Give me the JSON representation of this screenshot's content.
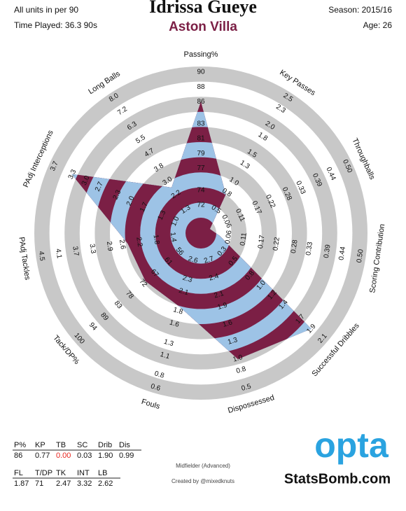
{
  "chart_data": {
    "type": "radar",
    "title": "Idrissa Gueye",
    "subtitle": "Aston Villa",
    "units_note": "All units in per 90",
    "time_played": "Time Played: 36.3 90s",
    "season": "Season: 2015/16",
    "age": "Age: 26",
    "position": "Midfielder (Advanced)",
    "credit": "Created by @mixedknuts",
    "logo": "opta",
    "site": "StatsBomb.com",
    "axes": [
      {
        "name": "Passing%",
        "abbreviation": "P%",
        "lim": [
          72,
          90
        ],
        "ticks": [
          72,
          74,
          77,
          79,
          81,
          83,
          86,
          88,
          90
        ]
      },
      {
        "name": "Key Passes",
        "abbreviation": "KP",
        "lim": [
          0.5,
          2.5
        ],
        "ticks": [
          0.5,
          0.8,
          {
            "value": 1,
            "label": "1.0"
          },
          1.3,
          1.5,
          1.8,
          {
            "value": 2,
            "label": "2.0"
          },
          2.3,
          2.5
        ]
      },
      {
        "name": "Throughballs",
        "abbreviation": "TB",
        "lim": [
          0.06,
          0.5
        ],
        "ticks": [
          0.06,
          0.11,
          0.17,
          0.22,
          0.28,
          0.33,
          0.39,
          0.44,
          {
            "value": 0.5,
            "label": "0.50"
          }
        ]
      },
      {
        "name": "Scoring Contribution",
        "abbreviation": "SC",
        "lim": [
          0.06,
          0.5
        ],
        "ticks": [
          0.06,
          0.11,
          0.17,
          0.22,
          0.28,
          0.33,
          0.39,
          0.44,
          {
            "value": 0.5,
            "label": "0.50"
          }
        ]
      },
      {
        "name": "Successful Dribbles",
        "abbreviation": "Drib",
        "lim": [
          0.3,
          2.1
        ],
        "ticks": [
          0.3,
          0.5,
          0.8,
          {
            "value": 1,
            "label": "1.0"
          },
          1.2,
          1.4,
          1.7,
          1.9,
          2.1
        ]
      },
      {
        "name": "Dispossessed",
        "abbreviation": "Dis",
        "lim": [
          2.7,
          0.5
        ],
        "ticks": [
          2.7,
          2.4,
          2.1,
          1.9,
          1.6,
          1.3,
          {
            "value": 1,
            "label": "1.0"
          },
          0.8,
          0.5
        ]
      },
      {
        "name": "Fouls",
        "abbreviation": "FL",
        "lim": [
          2.6,
          0.6
        ],
        "ticks": [
          2.6,
          2.3,
          2.1,
          1.8,
          1.6,
          1.3,
          1.1,
          0.8,
          0.6
        ]
      },
      {
        "name": "Tack/DP%",
        "abbreviation": "T/DP",
        "lim": [
          56,
          100
        ],
        "ticks": [
          56,
          61,
          67,
          72,
          78,
          83,
          89,
          94,
          100
        ]
      },
      {
        "name": "PAdj Tackles",
        "abbreviation": "TK",
        "lim": [
          1.4,
          4.5
        ],
        "ticks": [
          1.4,
          1.8,
          2.2,
          2.6,
          2.9,
          3.3,
          3.7,
          4.1,
          4.5
        ]
      },
      {
        "name": "PAdj Interceptions",
        "abbreviation": "INT",
        "lim": [
          1,
          3.7
        ],
        "ticks": [
          {
            "value": 1,
            "label": "1.0"
          },
          1.3,
          1.7,
          {
            "value": 2,
            "label": "2.0"
          },
          2.3,
          2.7,
          {
            "value": 3,
            "label": "3.0"
          },
          3.3,
          3.7
        ]
      },
      {
        "name": "Long Balls",
        "abbreviation": "LB",
        "lim": [
          1.3,
          8
        ],
        "ticks": [
          1.3,
          2.2,
          {
            "value": 3,
            "label": "3.0"
          },
          3.8,
          4.7,
          5.5,
          6.3,
          7.2,
          {
            "value": 8,
            "label": "8.0"
          }
        ]
      }
    ],
    "values": [
      86,
      0.77,
      0,
      0.03,
      1.9,
      0.99,
      1.87,
      71,
      2.47,
      3.32,
      2.62
    ],
    "value_labels": [
      "86",
      "0.77",
      "0.00",
      "0.03",
      "1.90",
      "0.99",
      "1.87",
      "71",
      "2.47",
      "3.32",
      "2.62"
    ],
    "label_colors": [
      "#111111",
      "#111111",
      "#e8251f",
      "#111111",
      "#111111",
      "#111111",
      "#111111",
      "#111111",
      "#111111",
      "#111111",
      "#111111"
    ],
    "ring_colors": [
      "#c8c8c8",
      "#ffffff"
    ],
    "fill_colors": [
      "#7b1f45",
      "#9dc3e6"
    ],
    "title_color": "#7b1f45",
    "logo_color": "#2aa3e0"
  }
}
